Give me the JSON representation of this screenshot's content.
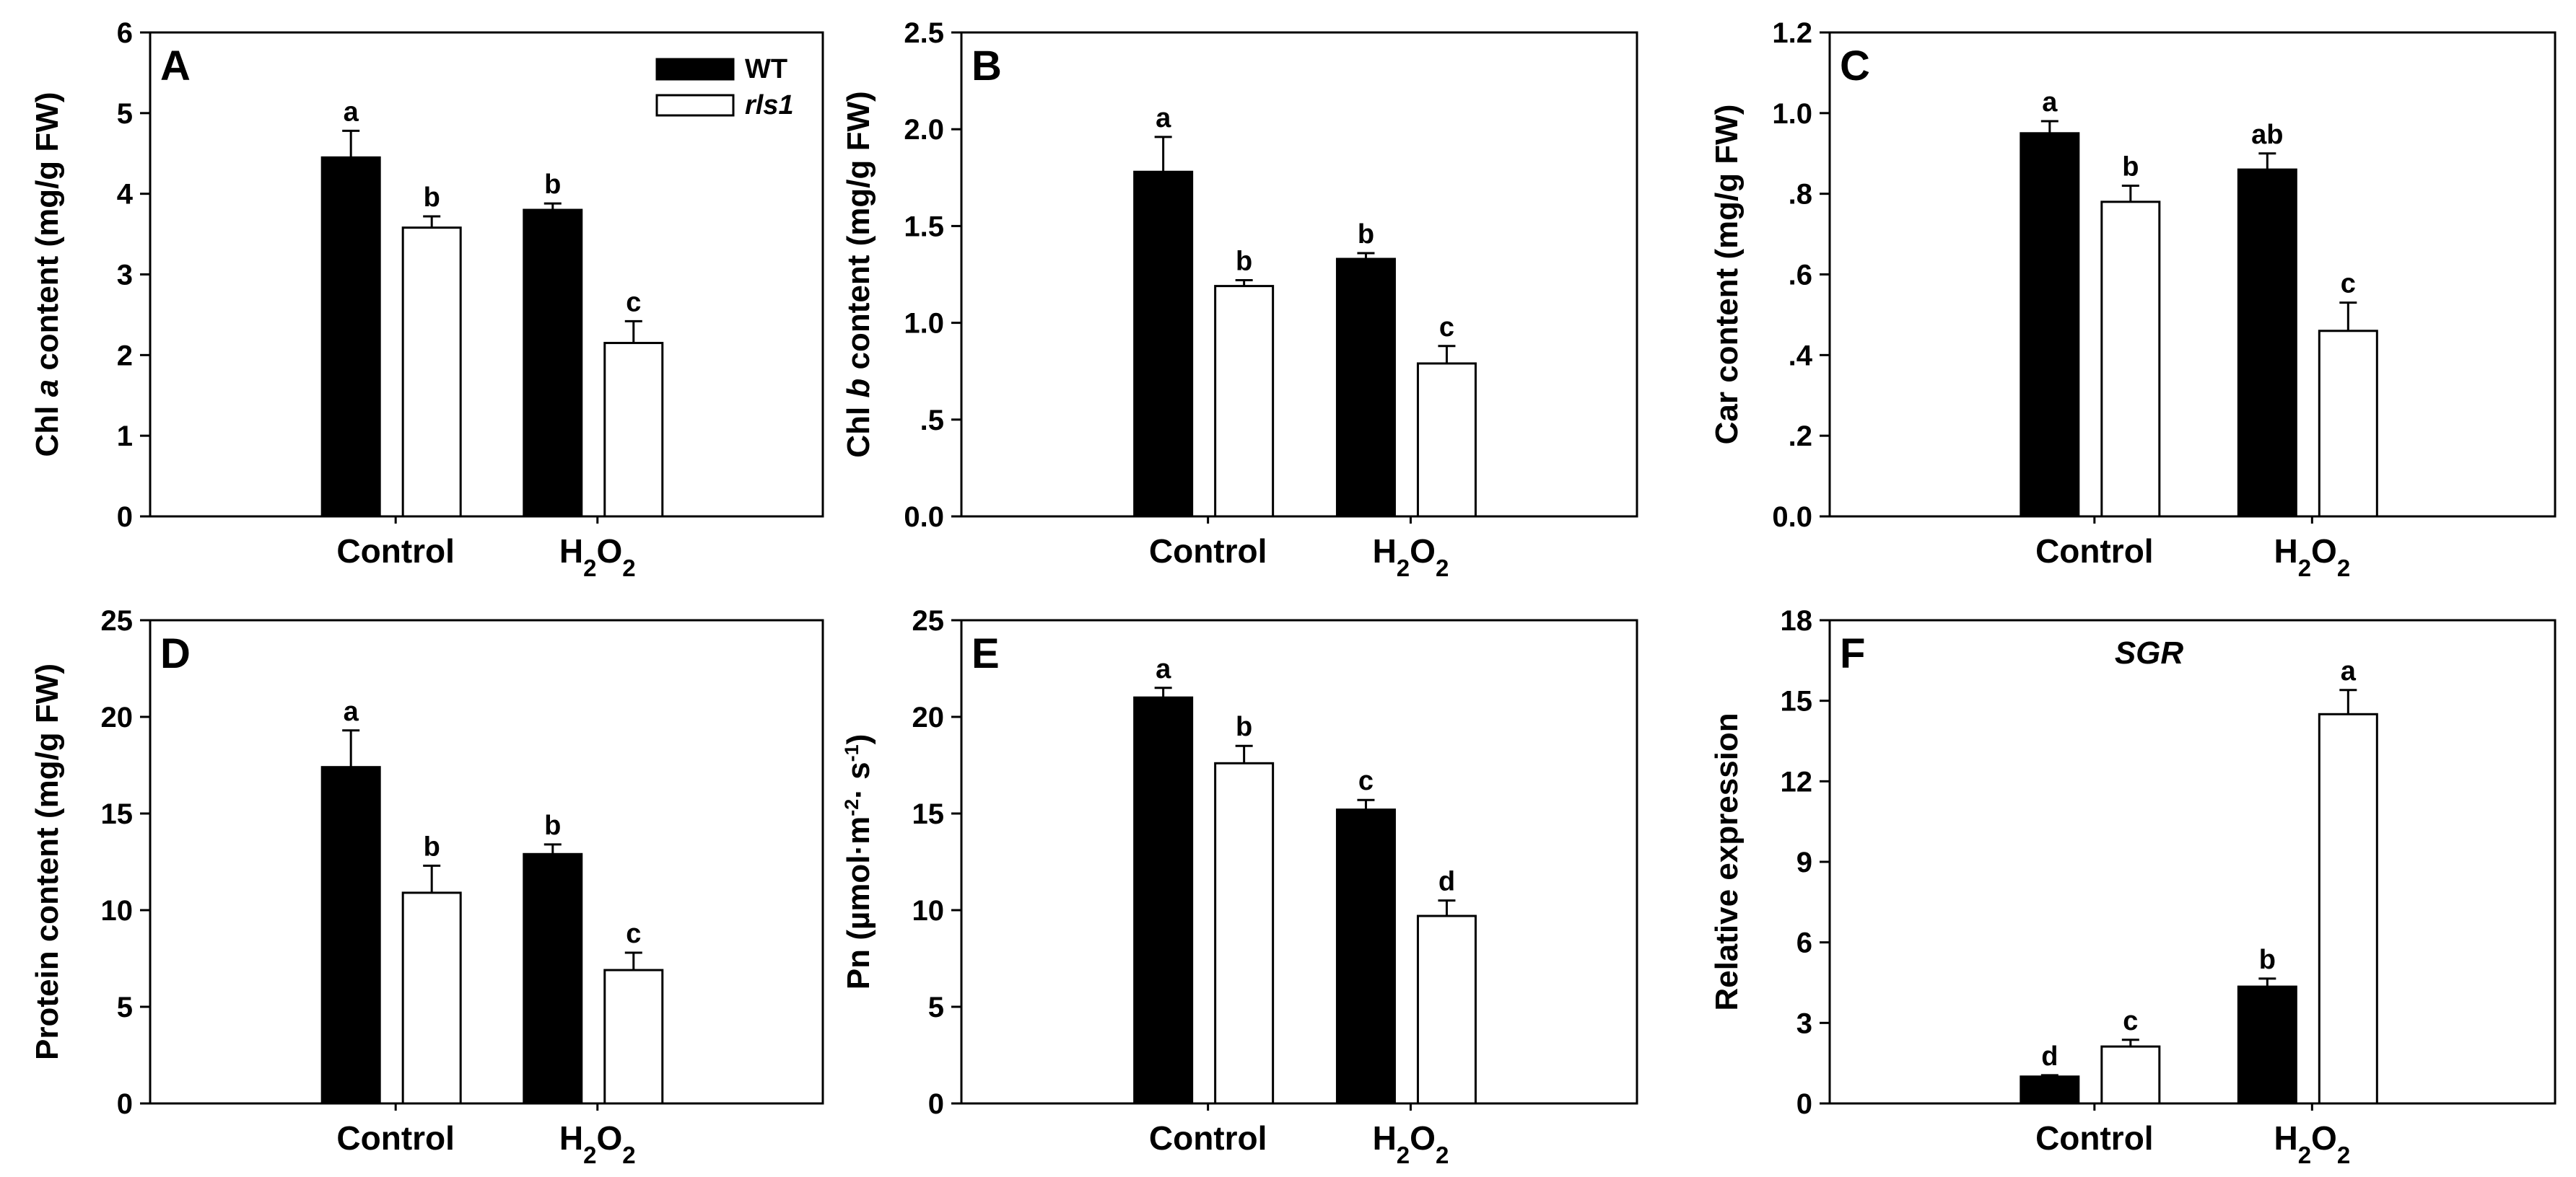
{
  "legend": {
    "entries": [
      {
        "label": "WT",
        "style": "italic-no",
        "color": "#000000"
      },
      {
        "label": "rls1",
        "style": "italic",
        "color": "#ffffff"
      }
    ]
  },
  "chart_data": [
    {
      "panel": "A",
      "type": "bar",
      "title": "",
      "ylabel": [
        {
          "t": "Chl "
        },
        {
          "t": "a",
          "i": true
        },
        {
          "t": " content (mg/g FW)"
        }
      ],
      "ylim": [
        0,
        6
      ],
      "ticks": [
        "0",
        "1",
        "2",
        "3",
        "4",
        "5",
        "6"
      ],
      "tick_values": [
        0,
        1,
        2,
        3,
        4,
        5,
        6
      ],
      "categories": [
        [
          {
            "t": "Control"
          }
        ],
        [
          {
            "t": "H"
          },
          {
            "t": "2",
            "sub": true
          },
          {
            "t": "O"
          },
          {
            "t": "2",
            "sub": true
          }
        ]
      ],
      "series": [
        {
          "name": "WT",
          "values": [
            4.45,
            3.8
          ],
          "errors": [
            0.33,
            0.08
          ],
          "letters": [
            "a",
            "b"
          ]
        },
        {
          "name": "rls1",
          "values": [
            3.58,
            2.15
          ],
          "errors": [
            0.14,
            0.27
          ],
          "letters": [
            "b",
            "c"
          ]
        }
      ]
    },
    {
      "panel": "B",
      "type": "bar",
      "title": "",
      "ylabel": [
        {
          "t": "Chl "
        },
        {
          "t": "b",
          "i": true
        },
        {
          "t": " content (mg/g FW)"
        }
      ],
      "ylim": [
        0,
        2.5
      ],
      "ticks": [
        "0.0",
        ".5",
        "1.0",
        "1.5",
        "2.0",
        "2.5"
      ],
      "tick_values": [
        0,
        0.5,
        1,
        1.5,
        2,
        2.5
      ],
      "categories": [
        [
          {
            "t": "Control"
          }
        ],
        [
          {
            "t": "H"
          },
          {
            "t": "2",
            "sub": true
          },
          {
            "t": "O"
          },
          {
            "t": "2",
            "sub": true
          }
        ]
      ],
      "series": [
        {
          "name": "WT",
          "values": [
            1.78,
            1.33
          ],
          "errors": [
            0.18,
            0.03
          ],
          "letters": [
            "a",
            "b"
          ]
        },
        {
          "name": "rls1",
          "values": [
            1.19,
            0.79
          ],
          "errors": [
            0.03,
            0.09
          ],
          "letters": [
            "b",
            "c"
          ]
        }
      ]
    },
    {
      "panel": "C",
      "type": "bar",
      "title": "",
      "ylabel": [
        {
          "t": "Car content (mg/g FW)"
        }
      ],
      "ylim": [
        0,
        1.2
      ],
      "ticks": [
        "0.0",
        ".2",
        ".4",
        ".6",
        ".8",
        "1.0",
        "1.2"
      ],
      "tick_values": [
        0,
        0.2,
        0.4,
        0.6,
        0.8,
        1.0,
        1.2
      ],
      "categories": [
        [
          {
            "t": "Control"
          }
        ],
        [
          {
            "t": "H"
          },
          {
            "t": "2",
            "sub": true
          },
          {
            "t": "O"
          },
          {
            "t": "2",
            "sub": true
          }
        ]
      ],
      "series": [
        {
          "name": "WT",
          "values": [
            0.95,
            0.86
          ],
          "errors": [
            0.03,
            0.04
          ],
          "letters": [
            "a",
            "ab"
          ]
        },
        {
          "name": "rls1",
          "values": [
            0.78,
            0.46
          ],
          "errors": [
            0.04,
            0.07
          ],
          "letters": [
            "b",
            "c"
          ]
        }
      ]
    },
    {
      "panel": "D",
      "type": "bar",
      "title": "",
      "ylabel": [
        {
          "t": "Protein content (mg/g FW)"
        }
      ],
      "ylim": [
        0,
        25
      ],
      "ticks": [
        "0",
        "5",
        "10",
        "15",
        "20",
        "25"
      ],
      "tick_values": [
        0,
        5,
        10,
        15,
        20,
        25
      ],
      "categories": [
        [
          {
            "t": "Control"
          }
        ],
        [
          {
            "t": "H"
          },
          {
            "t": "2",
            "sub": true
          },
          {
            "t": "O"
          },
          {
            "t": "2",
            "sub": true
          }
        ]
      ],
      "series": [
        {
          "name": "WT",
          "values": [
            17.4,
            12.9
          ],
          "errors": [
            1.9,
            0.5
          ],
          "letters": [
            "a",
            "b"
          ]
        },
        {
          "name": "rls1",
          "values": [
            10.9,
            6.9
          ],
          "errors": [
            1.4,
            0.9
          ],
          "letters": [
            "b",
            "c"
          ]
        }
      ]
    },
    {
      "panel": "E",
      "type": "bar",
      "title": "",
      "ylabel": [
        {
          "t": "Pn (µmol·m"
        },
        {
          "t": "-2",
          "sup": true
        },
        {
          "t": "· s"
        },
        {
          "t": "-1",
          "sup": true
        },
        {
          "t": ")"
        }
      ],
      "ylim": [
        0,
        25
      ],
      "ticks": [
        "0",
        "5",
        "10",
        "15",
        "20",
        "25"
      ],
      "tick_values": [
        0,
        5,
        10,
        15,
        20,
        25
      ],
      "categories": [
        [
          {
            "t": "Control"
          }
        ],
        [
          {
            "t": "H"
          },
          {
            "t": "2",
            "sub": true
          },
          {
            "t": "O"
          },
          {
            "t": "2",
            "sub": true
          }
        ]
      ],
      "series": [
        {
          "name": "WT",
          "values": [
            21.0,
            15.2
          ],
          "errors": [
            0.5,
            0.5
          ],
          "letters": [
            "a",
            "c"
          ]
        },
        {
          "name": "rls1",
          "values": [
            17.6,
            9.7
          ],
          "errors": [
            0.9,
            0.8
          ],
          "letters": [
            "b",
            "d"
          ]
        }
      ]
    },
    {
      "panel": "F",
      "type": "bar",
      "title": "SGR",
      "ylabel": [
        {
          "t": "Relative expression"
        }
      ],
      "ylim": [
        0,
        18
      ],
      "ticks": [
        "0",
        "3",
        "6",
        "9",
        "12",
        "15",
        "18"
      ],
      "tick_values": [
        0,
        3,
        6,
        9,
        12,
        15,
        18
      ],
      "categories": [
        [
          {
            "t": "Control"
          }
        ],
        [
          {
            "t": "H"
          },
          {
            "t": "2",
            "sub": true
          },
          {
            "t": "O"
          },
          {
            "t": "2",
            "sub": true
          }
        ]
      ],
      "series": [
        {
          "name": "WT",
          "values": [
            1.0,
            4.35
          ],
          "errors": [
            0.05,
            0.3
          ],
          "letters": [
            "d",
            "b"
          ]
        },
        {
          "name": "rls1",
          "values": [
            2.12,
            14.5
          ],
          "errors": [
            0.25,
            0.9
          ],
          "letters": [
            "c",
            "a"
          ]
        }
      ]
    }
  ]
}
